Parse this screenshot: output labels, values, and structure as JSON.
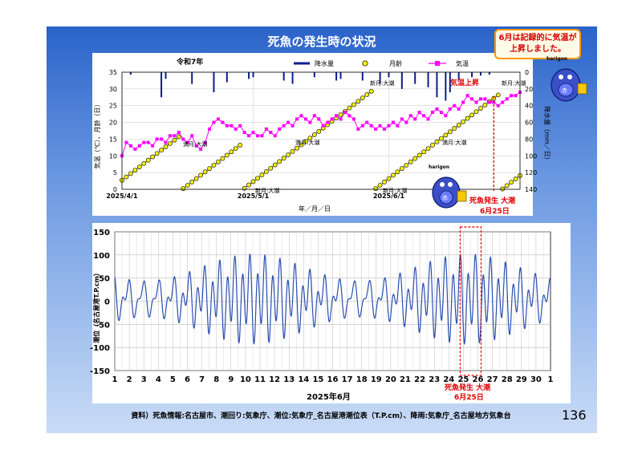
{
  "slide": {
    "title": "死魚の発生時の状況",
    "callout_lines": [
      "6月は記録的に気温が",
      "上昇しました。"
    ],
    "source_note": "資料）死魚情報:名古屋市、潮回り:気象庁、潮位:気象庁_名古屋港潮位表（T.P.cm）、降雨:気象庁_名古屋地方気象台",
    "page_number": "136",
    "mascot_label": "harigon",
    "mascot_badge": "赤"
  },
  "chart_data": [
    {
      "type": "line",
      "era_label": "令和7年",
      "xlabel": "年／月／日",
      "ylabel_left": "気温（℃）、月齢（日）",
      "ylabel_right": "降水量（mm／日）",
      "x_tick_labels": [
        "2025/4/1",
        "2025/5/1",
        "2025/6/1"
      ],
      "ylim_left": [
        0,
        35
      ],
      "left_ticks": [
        "0",
        "5",
        "10",
        "15",
        "20",
        "25",
        "30",
        "35"
      ],
      "ylim_right": [
        0,
        140
      ],
      "right_ticks": [
        "0",
        "20",
        "40",
        "60",
        "80",
        "100",
        "120",
        "140"
      ],
      "legend": [
        "降水量",
        "月齢",
        "気温"
      ],
      "colors": {
        "rain": "#0a1f8c",
        "moon_fill": "#f4f000",
        "temp": "#ff00ff",
        "alert": "#e00000"
      },
      "annotations": {
        "full_moon": "満月:大潮",
        "new_moon": "新月:大潮",
        "temp_rise": "気温上昇",
        "event_line1": "死魚発生 大潮",
        "event_line2": "6月25日"
      },
      "start_day": 0,
      "end_day": 91,
      "event_day": 85,
      "moon_age": [
        [
          0,
          2.7
        ],
        [
          13,
          15.7
        ],
        [
          14,
          0.2
        ],
        [
          27,
          13.2
        ],
        [
          28,
          0.3
        ],
        [
          57,
          29.3
        ],
        [
          58,
          0.2
        ],
        [
          86,
          28.2
        ],
        [
          87,
          0.1
        ],
        [
          91,
          4.1
        ]
      ],
      "temperature": [
        10,
        14,
        13,
        12,
        13,
        14,
        14,
        13,
        15,
        15,
        14,
        16,
        16,
        17,
        15,
        14,
        16,
        13,
        12,
        14,
        18,
        20,
        21,
        20,
        19,
        19,
        18,
        19,
        17,
        16,
        17,
        16,
        16,
        18,
        17,
        16,
        18,
        19,
        20,
        19,
        21,
        22,
        21,
        20,
        22,
        21,
        19,
        20,
        21,
        22,
        21,
        23,
        22,
        21,
        18,
        19,
        20,
        19,
        18,
        19,
        18,
        19,
        20,
        19,
        21,
        20,
        22,
        21,
        23,
        22,
        21,
        23,
        24,
        23,
        22,
        24,
        25,
        24,
        26,
        28,
        27,
        26,
        27,
        27,
        26,
        26,
        25,
        26,
        27,
        28,
        28,
        29
      ],
      "rain": [
        [
          2,
          3
        ],
        [
          9,
          30
        ],
        [
          10,
          8
        ],
        [
          16,
          14
        ],
        [
          21,
          24
        ],
        [
          24,
          12
        ],
        [
          29,
          8
        ],
        [
          30,
          6
        ],
        [
          37,
          10
        ],
        [
          39,
          14
        ],
        [
          44,
          6
        ],
        [
          49,
          10
        ],
        [
          50,
          8
        ],
        [
          55,
          10
        ],
        [
          59,
          14
        ],
        [
          61,
          6
        ],
        [
          64,
          20
        ],
        [
          67,
          14
        ],
        [
          70,
          18
        ],
        [
          72,
          30
        ],
        [
          74,
          34
        ],
        [
          75,
          24
        ],
        [
          77,
          10
        ],
        [
          80,
          6
        ],
        [
          82,
          4
        ],
        [
          84,
          3
        ]
      ]
    },
    {
      "type": "line",
      "xlabel": "2025年6月",
      "ylabel": "潮位（名古屋港T.P.cm）",
      "ylim": [
        -150,
        150
      ],
      "y_ticks": [
        "150",
        "100",
        "50",
        "0",
        "-50",
        "-100",
        "-150"
      ],
      "x_ticks": [
        "1",
        "2",
        "3",
        "4",
        "5",
        "6",
        "7",
        "8",
        "9",
        "10",
        "11",
        "12",
        "13",
        "14",
        "15",
        "16",
        "17",
        "18",
        "19",
        "20",
        "21",
        "22",
        "23",
        "24",
        "25",
        "26",
        "27",
        "28",
        "29",
        "30",
        "1"
      ],
      "grid": true,
      "series_color": "#2c4fb0",
      "event_box": [
        25,
        26
      ],
      "event_line1": "死魚発生 大潮",
      "event_line2": "6月25日",
      "days": 30,
      "mean_amplitude_cm": 90,
      "semidiurnal_amplitude_cm": 75,
      "diurnal_inequality_cm": 30
    }
  ]
}
